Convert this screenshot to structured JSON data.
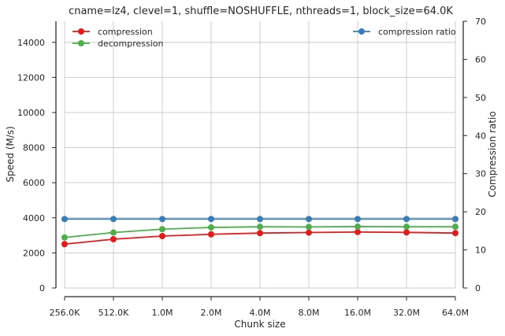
{
  "chart_data": {
    "type": "line",
    "title": "cname=lz4, clevel=1, shuffle=NOSHUFFLE, nthreads=1, block_size=64.0K",
    "xlabel": "Chunk size",
    "ylabel": "Speed (M/s)",
    "y2label": "Compression ratio",
    "categories": [
      "256.0K",
      "512.0K",
      "1.0M",
      "2.0M",
      "4.0M",
      "8.0M",
      "16.0M",
      "32.0M",
      "64.0M"
    ],
    "ylim": [
      0,
      15200
    ],
    "y2lim": [
      0,
      70
    ],
    "yticks": [
      0,
      2000,
      4000,
      6000,
      8000,
      10000,
      12000,
      14000
    ],
    "y2ticks": [
      0,
      10,
      20,
      30,
      40,
      50,
      60,
      70
    ],
    "grid": true,
    "series": [
      {
        "name": "compression",
        "axis": "left",
        "color": "#e41a1c",
        "values": [
          2500,
          2780,
          2960,
          3060,
          3130,
          3160,
          3190,
          3170,
          3130
        ]
      },
      {
        "name": "decompression",
        "axis": "left",
        "color": "#4daf4a",
        "values": [
          2880,
          3160,
          3350,
          3450,
          3490,
          3480,
          3500,
          3490,
          3490
        ]
      },
      {
        "name": "compression ratio",
        "axis": "right",
        "color": "#377eb8",
        "values": [
          18.1,
          18.1,
          18.1,
          18.1,
          18.1,
          18.1,
          18.1,
          18.1,
          18.1
        ]
      }
    ],
    "legend_left": [
      "compression",
      "decompression"
    ],
    "legend_right": [
      "compression ratio"
    ]
  }
}
